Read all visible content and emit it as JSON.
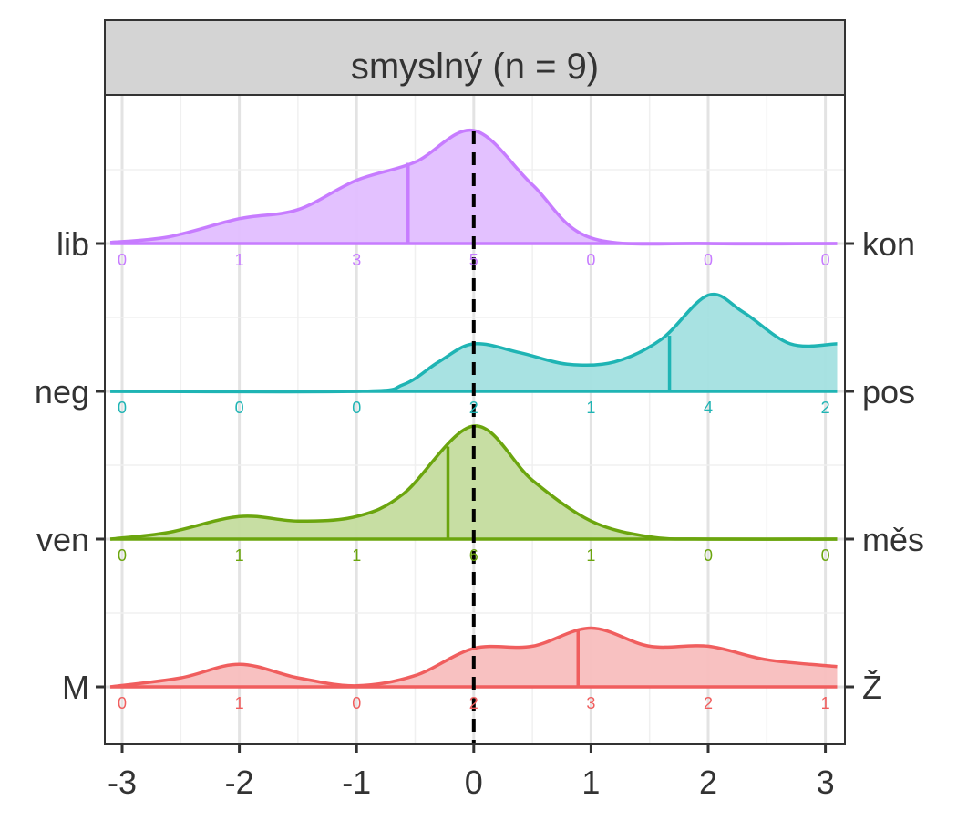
{
  "chart_data": {
    "type": "ridgeline",
    "title": "smyslný (n = 9)",
    "xlabel": "",
    "ylabel": "",
    "xlim": [
      -3.1,
      3.1
    ],
    "x_ticks": [
      "-3",
      "-2",
      "-1",
      "0",
      "1",
      "2",
      "3"
    ],
    "reference_line_x": 0,
    "grid": true,
    "legend": "none",
    "series": [
      {
        "left_label": "lib",
        "right_label": "kon",
        "color": "#C77CFF",
        "fill": "#E2BEFF",
        "mean": -0.56,
        "counts": [
          "0",
          "1",
          "3",
          "5",
          "0",
          "0",
          "0"
        ],
        "density": [
          [
            -3.1,
            0.01
          ],
          [
            -2.6,
            0.06
          ],
          [
            -2.0,
            0.22
          ],
          [
            -1.5,
            0.3
          ],
          [
            -1.0,
            0.56
          ],
          [
            -0.5,
            0.72
          ],
          [
            0.0,
            1.0
          ],
          [
            0.5,
            0.52
          ],
          [
            1.0,
            0.05
          ],
          [
            2.0,
            0.0
          ],
          [
            3.1,
            0.0
          ]
        ]
      },
      {
        "left_label": "neg",
        "right_label": "pos",
        "color": "#1FB4B4",
        "fill": "#A3E0E0",
        "mean": 1.67,
        "counts": [
          "0",
          "0",
          "0",
          "2",
          "1",
          "4",
          "2"
        ],
        "density": [
          [
            -3.1,
            0.0
          ],
          [
            -1.0,
            0.0
          ],
          [
            -0.6,
            0.06
          ],
          [
            -0.3,
            0.26
          ],
          [
            0.0,
            0.42
          ],
          [
            0.4,
            0.34
          ],
          [
            0.8,
            0.24
          ],
          [
            1.2,
            0.26
          ],
          [
            1.6,
            0.46
          ],
          [
            2.0,
            0.85
          ],
          [
            2.3,
            0.7
          ],
          [
            2.7,
            0.42
          ],
          [
            3.1,
            0.42
          ]
        ]
      },
      {
        "left_label": "ven",
        "right_label": "měs",
        "color": "#6BA50E",
        "fill": "#C4DC9E",
        "mean": -0.22,
        "counts": [
          "0",
          "1",
          "1",
          "6",
          "1",
          "0",
          "0"
        ],
        "density": [
          [
            -3.1,
            0.0
          ],
          [
            -2.6,
            0.06
          ],
          [
            -2.0,
            0.2
          ],
          [
            -1.5,
            0.16
          ],
          [
            -1.0,
            0.2
          ],
          [
            -0.6,
            0.4
          ],
          [
            0.0,
            1.0
          ],
          [
            0.5,
            0.52
          ],
          [
            1.0,
            0.16
          ],
          [
            1.5,
            0.02
          ],
          [
            2.0,
            0.0
          ],
          [
            3.1,
            0.0
          ]
        ]
      },
      {
        "left_label": "M",
        "right_label": "Ž",
        "color": "#F05E5E",
        "fill": "#F8BEBE",
        "mean": 0.89,
        "counts": [
          "0",
          "1",
          "0",
          "2",
          "3",
          "2",
          "1"
        ],
        "density": [
          [
            -3.1,
            0.0
          ],
          [
            -2.5,
            0.08
          ],
          [
            -2.0,
            0.2
          ],
          [
            -1.5,
            0.08
          ],
          [
            -1.0,
            0.01
          ],
          [
            -0.5,
            0.1
          ],
          [
            0.0,
            0.34
          ],
          [
            0.5,
            0.36
          ],
          [
            1.0,
            0.52
          ],
          [
            1.5,
            0.36
          ],
          [
            2.0,
            0.36
          ],
          [
            2.5,
            0.24
          ],
          [
            3.1,
            0.18
          ]
        ]
      }
    ]
  }
}
